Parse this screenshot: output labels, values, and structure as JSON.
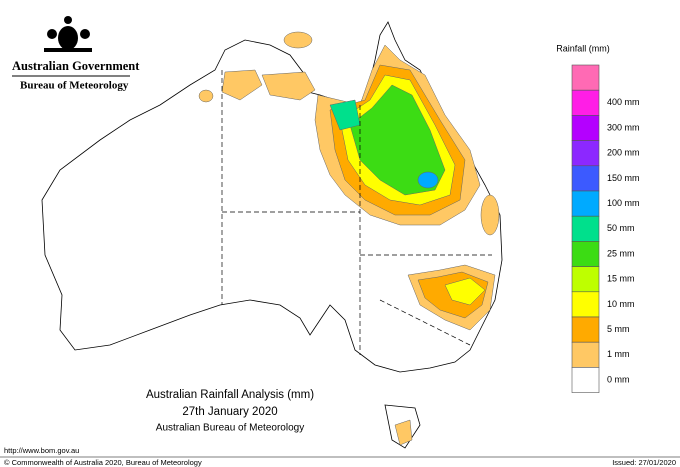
{
  "header": {
    "government": "Australian Government",
    "agency": "Bureau of Meteorology"
  },
  "legend": {
    "title": "Rainfall (mm)",
    "items": [
      {
        "color": "#ff6ab4"
      },
      {
        "label": "400 mm",
        "color": "#ff1ee6"
      },
      {
        "label": "300 mm",
        "color": "#b400ff"
      },
      {
        "label": "200 mm",
        "color": "#8c28ff"
      },
      {
        "label": "150 mm",
        "color": "#3c5aff"
      },
      {
        "label": "100 mm",
        "color": "#00aaff"
      },
      {
        "label": "50 mm",
        "color": "#00e08c"
      },
      {
        "label": "25 mm",
        "color": "#3cdc14"
      },
      {
        "label": "15 mm",
        "color": "#beff00"
      },
      {
        "label": "10 mm",
        "color": "#ffff00"
      },
      {
        "label": "5 mm",
        "color": "#ffaa00"
      },
      {
        "label": "1 mm",
        "color": "#ffc864"
      },
      {
        "label": "0 mm",
        "color": "#ffffff"
      }
    ]
  },
  "title": {
    "line1": "Australian Rainfall Analysis (mm)",
    "line2": "27th January 2020",
    "line3": "Australian Bureau of Meteorology"
  },
  "footer": {
    "url": "http://www.bom.gov.au",
    "copyright": "© Commonwealth of Australia 2020, Bureau of Meteorology",
    "issued": "Issued: 27/01/2020"
  }
}
